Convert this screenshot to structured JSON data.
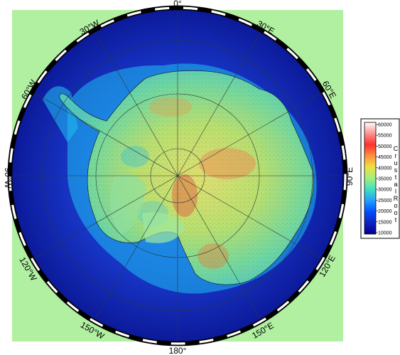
{
  "map": {
    "projection": "polar-stereographic-south",
    "graticule_labels": {
      "top": "0°",
      "top_left": "30°W",
      "top_right": "30°E",
      "upper_left": "60°W",
      "upper_right": "60°E",
      "left": "90°W",
      "right": "90°E",
      "lower_left": "120°W",
      "lower_right": "120°E",
      "bottom_left": "150°W",
      "bottom_right": "150°E",
      "bottom": "180°"
    }
  },
  "colorbar": {
    "title_letters": [
      "C",
      "r",
      "u",
      "s",
      "t",
      "a",
      "l",
      "R",
      "o",
      "o",
      "t"
    ],
    "ticks": [
      "60000",
      "55000",
      "50000",
      "45000",
      "40000",
      "35000",
      "30000",
      "25000",
      "20000",
      "15000",
      "10000"
    ],
    "colors": [
      "#ffffff",
      "#ff8c8c",
      "#ff3030",
      "#ffa040",
      "#ffe040",
      "#a0f080",
      "#40e0c0",
      "#20a0ff",
      "#0050ff",
      "#1020c0",
      "#000090"
    ]
  },
  "colors": {
    "background_fill": "#b0f0a0",
    "ocean_deep": "#1020c0",
    "ocean_shelf": "#20a0ff",
    "land_low": "#60d0a0",
    "land_mid": "#c0e060",
    "land_high": "#e07040"
  }
}
